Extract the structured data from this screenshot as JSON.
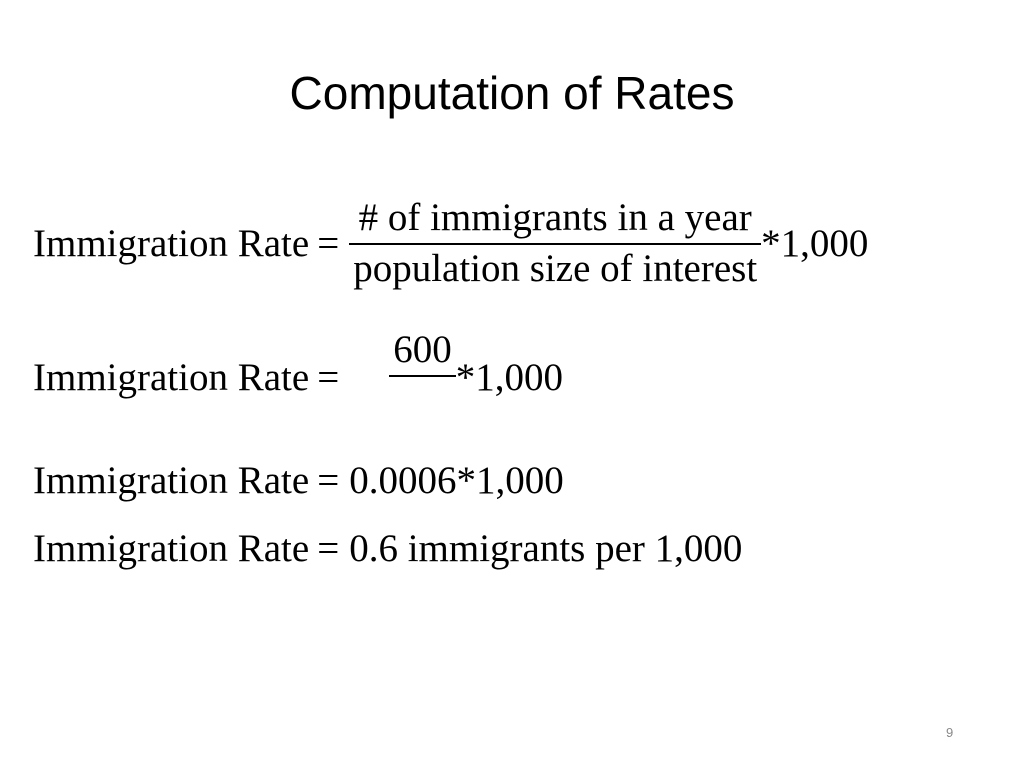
{
  "title": "Computation of Rates",
  "equations": [
    {
      "lhs": "Immigration Rate",
      "sign": "=",
      "numerator": "# of immigrants in a year",
      "denominator": "population size of interest",
      "rhs": "*1,000"
    },
    {
      "lhs": "Immigration Rate",
      "sign": "=",
      "numerator": "600",
      "rhs": "*1,000"
    },
    {
      "lhs": "Immigration Rate",
      "sign": "=",
      "rhs": "0.0006*1,000"
    },
    {
      "lhs": "Immigration Rate",
      "sign": "=",
      "rhs": "0.6 immigrants per 1,000"
    }
  ],
  "page_number": "9"
}
